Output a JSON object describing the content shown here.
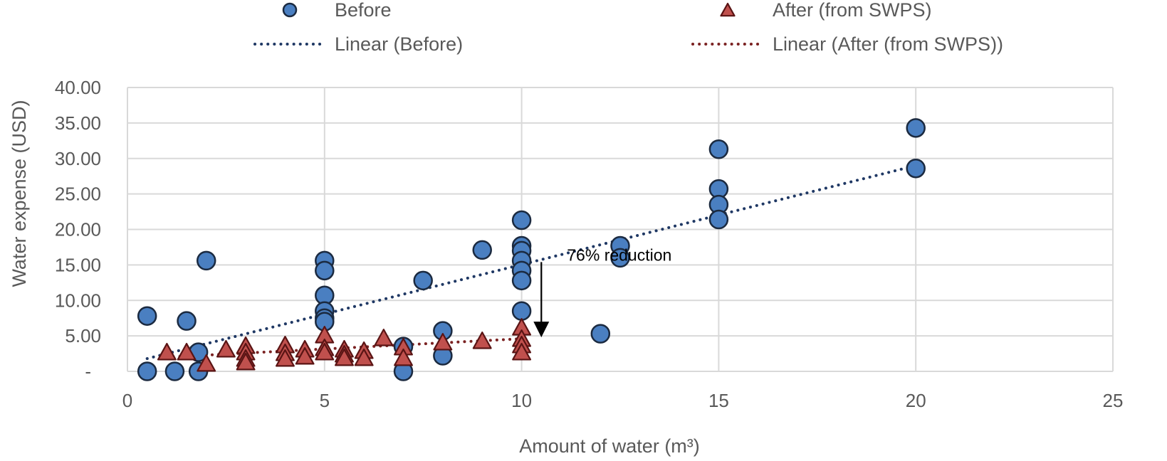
{
  "chart_data": {
    "type": "scatter",
    "xlabel": "Amount of water (m³)",
    "ylabel": "Water expense (USD)",
    "xlim": [
      0,
      25
    ],
    "ylim": [
      0,
      40
    ],
    "x_ticks": [
      "0",
      "5",
      "10",
      "15",
      "20",
      "25"
    ],
    "y_ticks": [
      "-",
      "5.00",
      "10.00",
      "15.00",
      "20.00",
      "25.00",
      "30.00",
      "35.00",
      "40.00"
    ],
    "grid": true,
    "legend_position": "top",
    "series": [
      {
        "name": "Before",
        "marker": "circle",
        "color": "#4a7fc1",
        "points": [
          [
            0.5,
            7.8
          ],
          [
            0.5,
            0
          ],
          [
            1.2,
            0
          ],
          [
            1.5,
            7.1
          ],
          [
            1.8,
            0
          ],
          [
            1.8,
            2.7
          ],
          [
            2,
            15.6
          ],
          [
            5,
            15.6
          ],
          [
            5,
            14.2
          ],
          [
            5,
            10.7
          ],
          [
            5,
            8.5
          ],
          [
            5,
            7.5
          ],
          [
            5,
            7.0
          ],
          [
            7,
            3.5
          ],
          [
            7,
            0
          ],
          [
            7.5,
            12.8
          ],
          [
            8,
            5.7
          ],
          [
            8,
            2.2
          ],
          [
            9,
            17.1
          ],
          [
            10,
            21.3
          ],
          [
            10,
            17.7
          ],
          [
            10,
            17.0
          ],
          [
            10,
            15.6
          ],
          [
            10,
            14.2
          ],
          [
            10,
            12.8
          ],
          [
            10,
            8.5
          ],
          [
            12,
            5.3
          ],
          [
            12.5,
            17.7
          ],
          [
            12.5,
            16.0
          ],
          [
            15,
            31.3
          ],
          [
            15,
            25.7
          ],
          [
            15,
            23.5
          ],
          [
            15,
            21.4
          ],
          [
            20,
            34.3
          ],
          [
            20,
            28.6
          ]
        ]
      },
      {
        "name": "After (from SWPS)",
        "marker": "triangle",
        "color": "#c0504d",
        "points": [
          [
            1,
            2.6
          ],
          [
            1.5,
            2.6
          ],
          [
            2,
            1.0
          ],
          [
            2.5,
            3.0
          ],
          [
            3,
            3.5
          ],
          [
            3,
            2.6
          ],
          [
            3,
            1.7
          ],
          [
            3,
            1.2
          ],
          [
            4,
            3.6
          ],
          [
            4,
            2.5
          ],
          [
            4,
            1.7
          ],
          [
            4.5,
            3.0
          ],
          [
            4.5,
            2.0
          ],
          [
            5,
            5.0
          ],
          [
            5,
            3.2
          ],
          [
            5,
            2.6
          ],
          [
            5.5,
            3.0
          ],
          [
            5.5,
            2.3
          ],
          [
            5.5,
            1.8
          ],
          [
            6,
            2.8
          ],
          [
            6,
            1.8
          ],
          [
            6.5,
            4.6
          ],
          [
            7,
            3.3
          ],
          [
            7,
            1.8
          ],
          [
            8,
            4.0
          ],
          [
            9,
            4.2
          ],
          [
            10,
            6.1
          ],
          [
            10,
            4.5
          ],
          [
            10,
            3.6
          ],
          [
            10,
            2.6
          ]
        ]
      }
    ],
    "trendlines": [
      {
        "name": "Linear (Before)",
        "style": "dotted",
        "color": "#1f3864",
        "from": [
          0.5,
          1.8
        ],
        "to": [
          20,
          29.0
        ]
      },
      {
        "name": "Linear (After (from SWPS))",
        "style": "dotted",
        "color": "#7b2222",
        "from": [
          1.0,
          2.0
        ],
        "to": [
          10,
          4.6
        ]
      }
    ],
    "annotations": [
      {
        "text": "76% reduction",
        "arrow_x": 10.5,
        "arrow_from_y": 15.4,
        "arrow_to_y": 4.8
      }
    ]
  }
}
